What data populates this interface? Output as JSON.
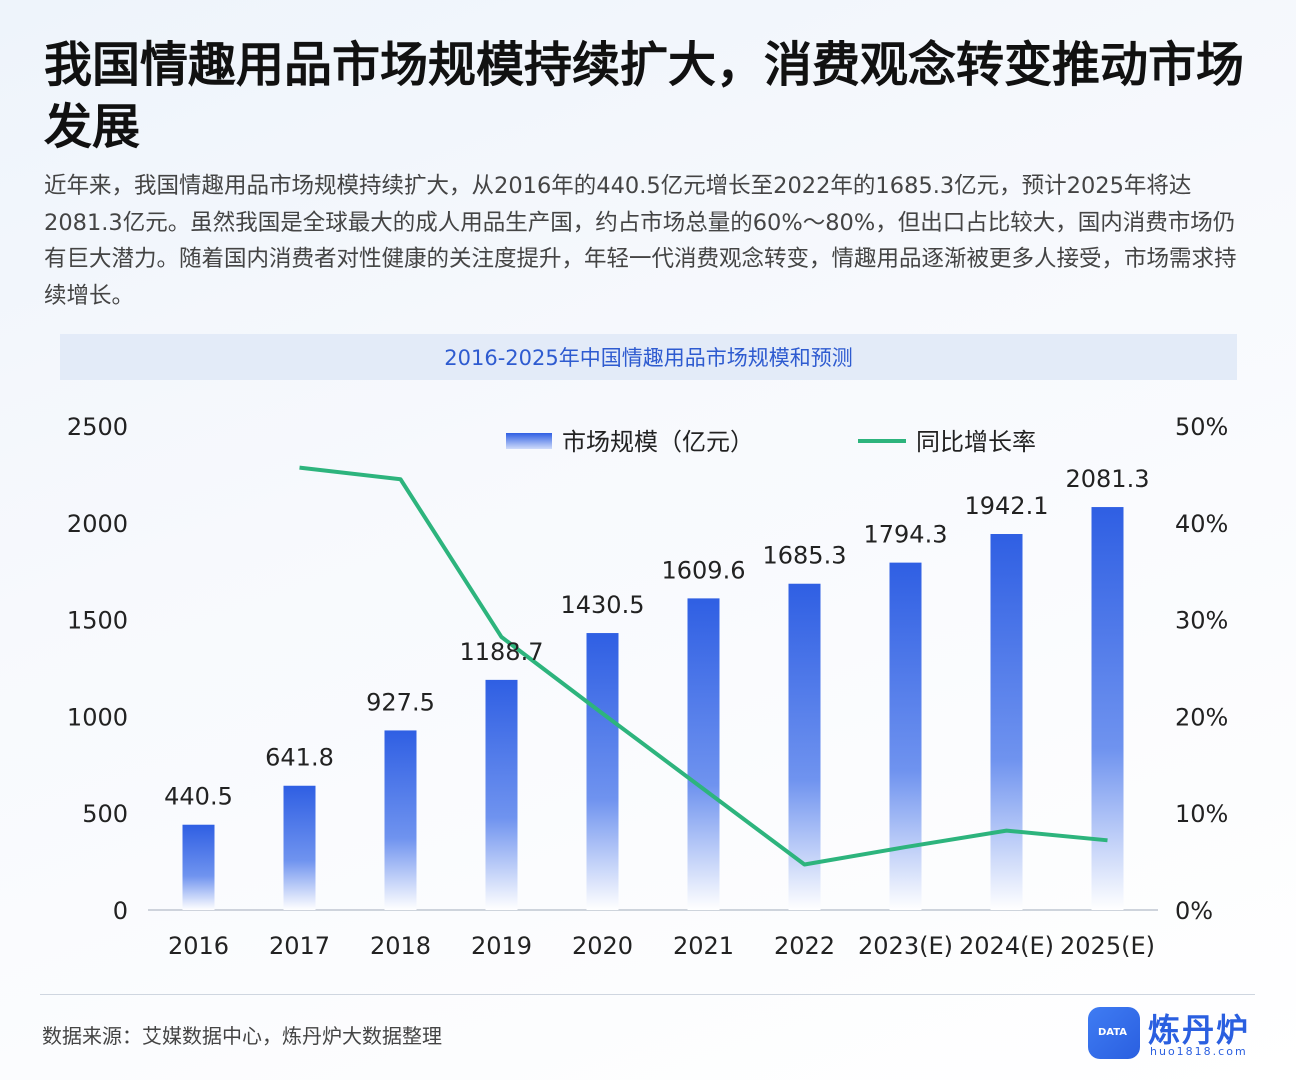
{
  "title": "我国情趣用品市场规模持续扩大，消费观念转变推动市场发展",
  "description": "近年来，我国情趣用品市场规模持续扩大，从2016年的440.5亿元增长至2022年的1685.3亿元，预计2025年将达2081.3亿元。虽然我国是全球最大的成人用品生产国，约占市场总量的60%～80%，但出口占比较大，国内消费市场仍有巨大潜力。随着国内消费者对性健康的关注度提升，年轻一代消费观念转变，情趣用品逐渐被更多人接受，市场需求持续增长。",
  "chart_data": {
    "type": "bar+line",
    "title": "2016-2025年中国情趣用品市场规模和预测",
    "categories": [
      "2016",
      "2017",
      "2018",
      "2019",
      "2020",
      "2021",
      "2022",
      "2023(E)",
      "2024(E)",
      "2025(E)"
    ],
    "series": [
      {
        "name": "市场规模（亿元）",
        "type": "bar",
        "axis": "left",
        "values": [
          440.5,
          641.8,
          927.5,
          1188.7,
          1430.5,
          1609.6,
          1685.3,
          1794.3,
          1942.1,
          2081.3
        ],
        "labels": [
          "440.5",
          "641.8",
          "927.5",
          "1188.7",
          "1430.5",
          "1609.6",
          "1685.3",
          "1794.3",
          "1942.1",
          "2081.3"
        ]
      },
      {
        "name": "同比增长率",
        "type": "line",
        "axis": "right",
        "values": [
          null,
          45.7,
          44.5,
          28.2,
          20.3,
          12.5,
          4.7,
          6.5,
          8.2,
          7.2
        ]
      }
    ],
    "y_left": {
      "min": 0,
      "max": 2500,
      "ticks": [
        0,
        500,
        1000,
        1500,
        2000,
        2500
      ]
    },
    "y_right": {
      "min": 0,
      "max": 50,
      "ticks": [
        "0%",
        "10%",
        "20%",
        "30%",
        "40%",
        "50%"
      ]
    },
    "legend_position": "top-center"
  },
  "colors": {
    "bar_top": "#2f5fe3",
    "bar_bottom": "#ffffff",
    "line": "#2db47d",
    "title_bar_text": "#2e5bd0"
  },
  "footer": {
    "source": "数据来源：艾媒数据中心，炼丹炉大数据整理"
  },
  "logo": {
    "name": "炼丹炉",
    "url": "huo1818.com",
    "badge": "DATA"
  }
}
